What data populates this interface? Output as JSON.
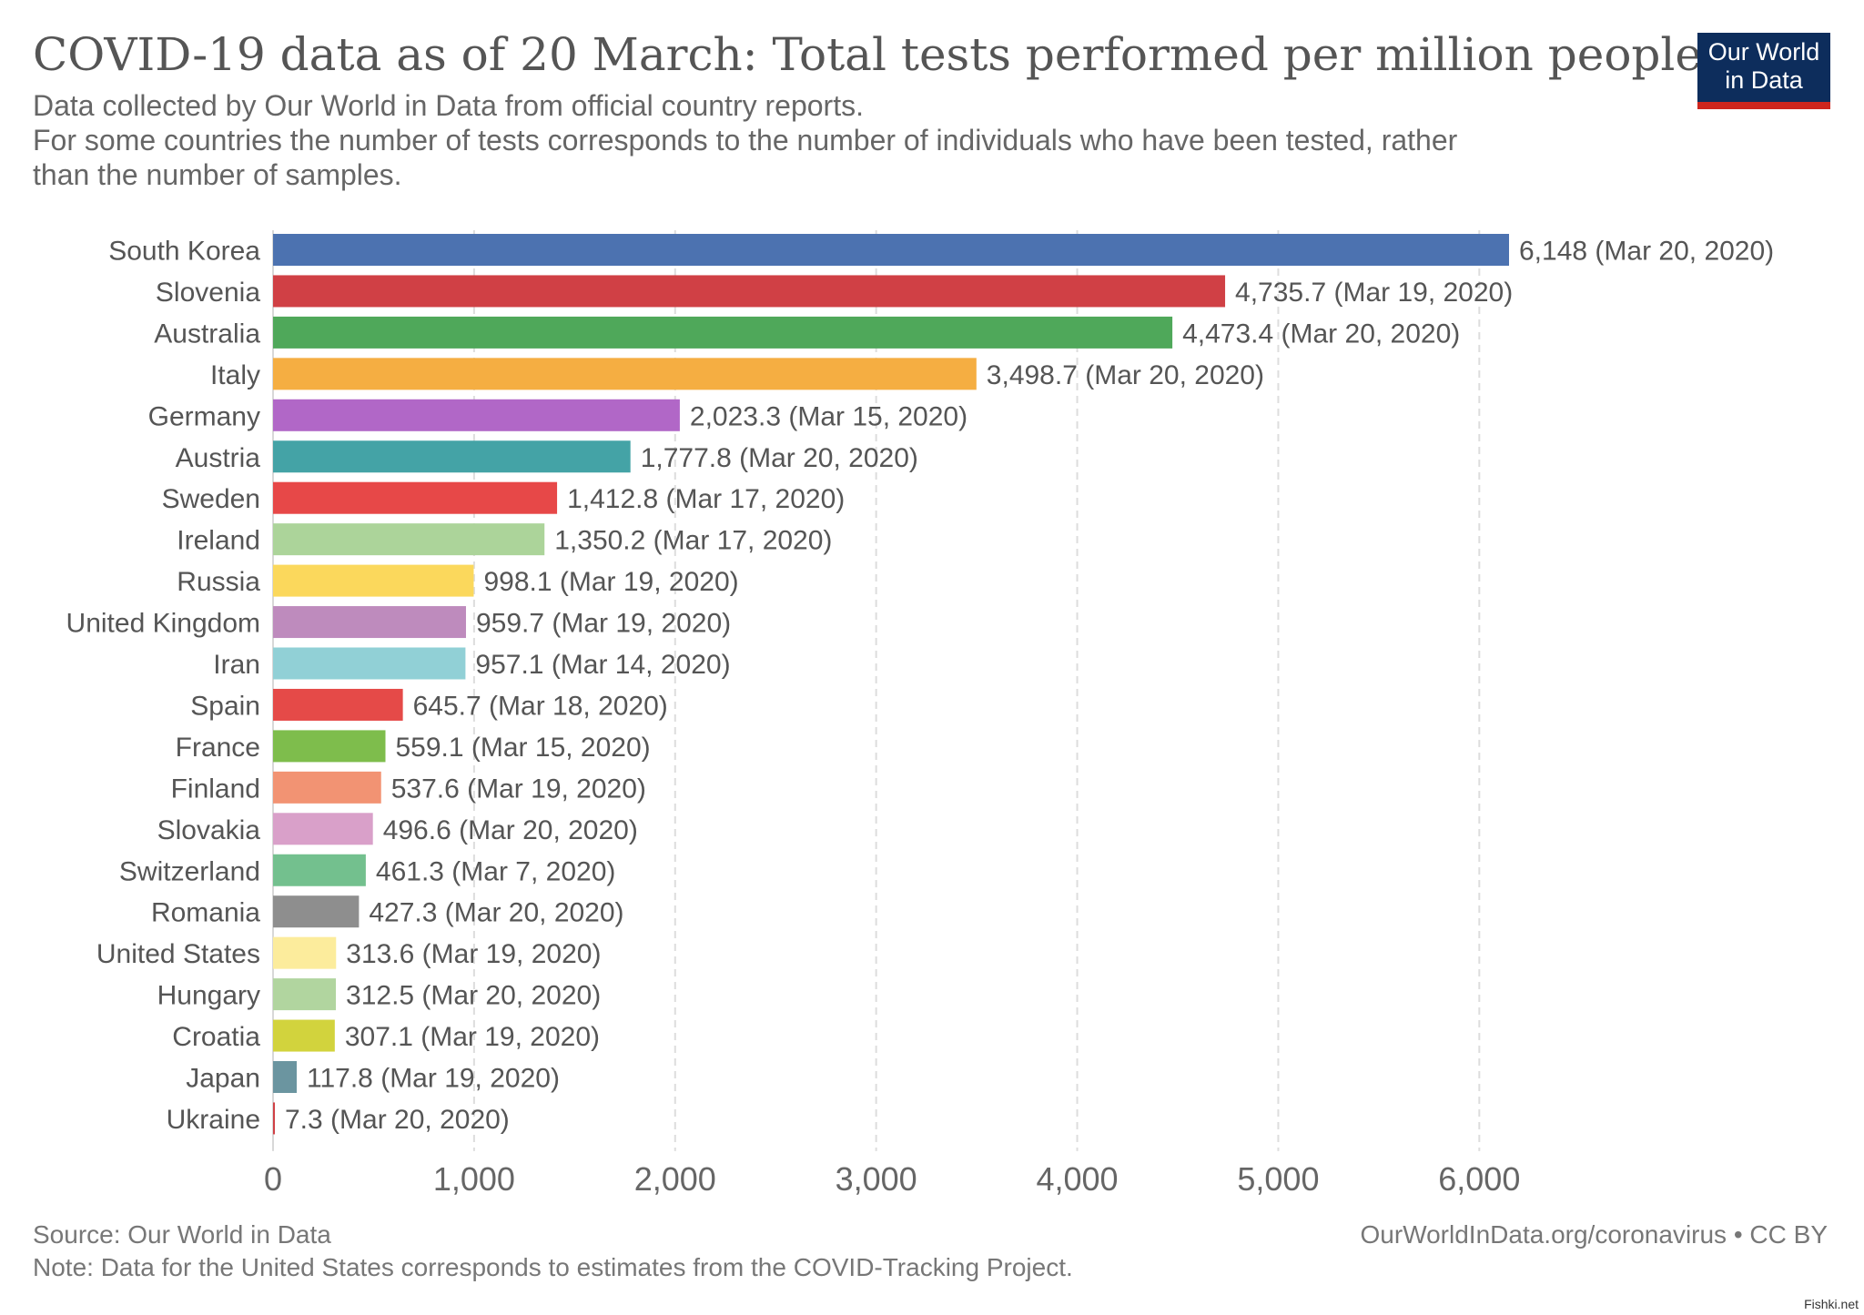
{
  "header": {
    "title": "COVID-19 data as of 20 March: Total tests performed per million people",
    "subtitle_lines": [
      "Data collected by Our World in Data from official country reports.",
      "For some countries the number of tests corresponds to the number of individuals who have been tested, rather",
      "than the number of samples."
    ]
  },
  "logo": {
    "line1": "Our World",
    "line2": "in Data",
    "colors": {
      "background": "#0d2d5c",
      "underline": "#ce261e"
    }
  },
  "footer": {
    "source": "Source: Our World in Data",
    "note": "Note: Data for the United States corresponds to estimates from the COVID-Tracking Project.",
    "url": "OurWorldInData.org/coronavirus • CC BY"
  },
  "watermark": "Fishki.net",
  "chart_data": {
    "type": "bar",
    "orientation": "horizontal",
    "title": "COVID-19 data as of 20 March: Total tests performed per million people",
    "xlabel": "",
    "ylabel": "",
    "xlim": [
      0,
      6148
    ],
    "x_ticks": [
      0,
      1000,
      2000,
      3000,
      4000,
      5000,
      6000
    ],
    "x_tick_labels": [
      "0",
      "1,000",
      "2,000",
      "3,000",
      "4,000",
      "5,000",
      "6,000"
    ],
    "grid": "vertical dashed",
    "legend": "none",
    "bars": [
      {
        "category": "South Korea",
        "value": 6148,
        "label": "6,148 (Mar 20, 2020)",
        "color": "#4c72b0"
      },
      {
        "category": "Slovenia",
        "value": 4735.7,
        "label": "4,735.7 (Mar 19, 2020)",
        "color": "#d04045"
      },
      {
        "category": "Australia",
        "value": 4473.4,
        "label": "4,473.4 (Mar 20, 2020)",
        "color": "#4fa85a"
      },
      {
        "category": "Italy",
        "value": 3498.7,
        "label": "3,498.7 (Mar 20, 2020)",
        "color": "#f5ae42"
      },
      {
        "category": "Germany",
        "value": 2023.3,
        "label": "2,023.3 (Mar 15, 2020)",
        "color": "#b167c7"
      },
      {
        "category": "Austria",
        "value": 1777.8,
        "label": "1,777.8 (Mar 20, 2020)",
        "color": "#44a3a6"
      },
      {
        "category": "Sweden",
        "value": 1412.8,
        "label": "1,412.8 (Mar 17, 2020)",
        "color": "#e74848"
      },
      {
        "category": "Ireland",
        "value": 1350.2,
        "label": "1,350.2 (Mar 17, 2020)",
        "color": "#acd49a"
      },
      {
        "category": "Russia",
        "value": 998.1,
        "label": "998.1 (Mar 19, 2020)",
        "color": "#fbd85c"
      },
      {
        "category": "United Kingdom",
        "value": 959.7,
        "label": "959.7 (Mar 19, 2020)",
        "color": "#be8bbd"
      },
      {
        "category": "Iran",
        "value": 957.1,
        "label": "957.1 (Mar 14, 2020)",
        "color": "#91d0d6"
      },
      {
        "category": "Spain",
        "value": 645.7,
        "label": "645.7 (Mar 18, 2020)",
        "color": "#e54a48"
      },
      {
        "category": "France",
        "value": 559.1,
        "label": "559.1 (Mar 15, 2020)",
        "color": "#7ebd4c"
      },
      {
        "category": "Finland",
        "value": 537.6,
        "label": "537.6 (Mar 19, 2020)",
        "color": "#f29373"
      },
      {
        "category": "Slovakia",
        "value": 496.6,
        "label": "496.6 (Mar 20, 2020)",
        "color": "#d9a0c9"
      },
      {
        "category": "Switzerland",
        "value": 461.3,
        "label": "461.3 (Mar 7, 2020)",
        "color": "#73c08e"
      },
      {
        "category": "Romania",
        "value": 427.3,
        "label": "427.3 (Mar 20, 2020)",
        "color": "#8e8e8e"
      },
      {
        "category": "United States",
        "value": 313.6,
        "label": "313.6 (Mar 19, 2020)",
        "color": "#fcec9c"
      },
      {
        "category": "Hungary",
        "value": 312.5,
        "label": "312.5 (Mar 20, 2020)",
        "color": "#b1d59f"
      },
      {
        "category": "Croatia",
        "value": 307.1,
        "label": "307.1 (Mar 19, 2020)",
        "color": "#d2d33d"
      },
      {
        "category": "Japan",
        "value": 117.8,
        "label": "117.8 (Mar 19, 2020)",
        "color": "#6b95a0"
      },
      {
        "category": "Ukraine",
        "value": 7.3,
        "label": "7.3 (Mar 20, 2020)",
        "color": "#d04045"
      }
    ]
  }
}
